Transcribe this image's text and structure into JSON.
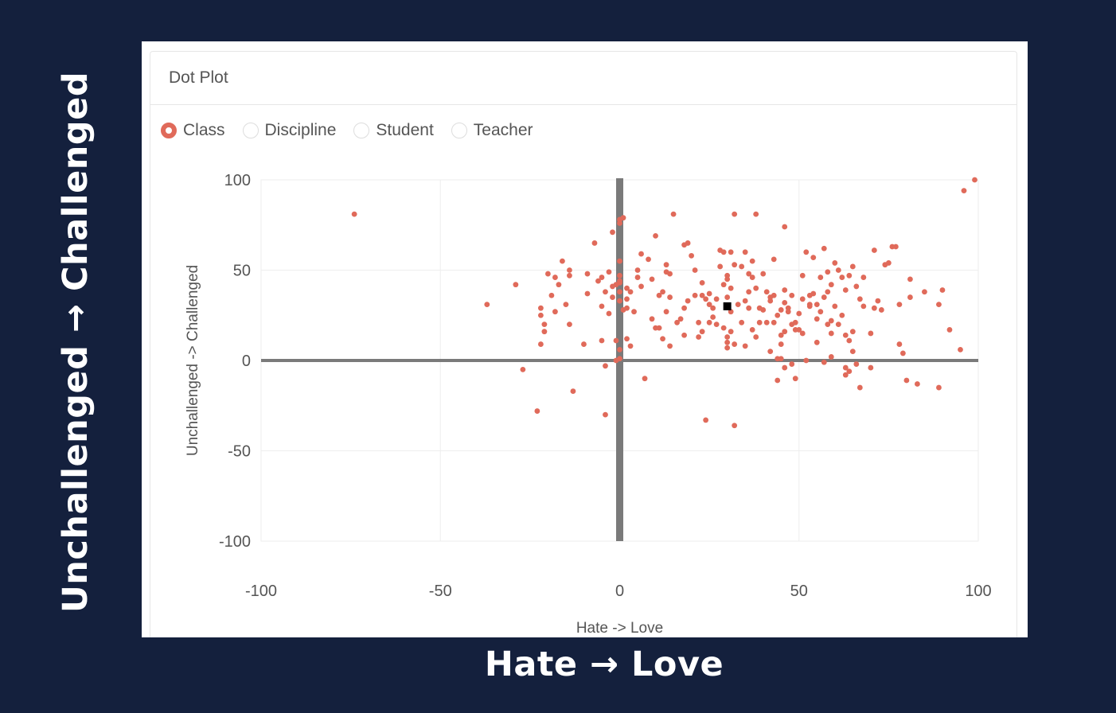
{
  "overlay": {
    "y_caption": "Unchallenged → Challenged",
    "x_caption": "Hate → Love"
  },
  "card": {
    "title": "Dot Plot"
  },
  "radios": [
    {
      "label": "Class",
      "checked": true
    },
    {
      "label": "Discipline",
      "checked": false
    },
    {
      "label": "Student",
      "checked": false
    },
    {
      "label": "Teacher",
      "checked": false
    }
  ],
  "colors": {
    "background": "#14203d",
    "dot": "#e06a5a",
    "axis_line": "#7a7a7a",
    "highlight": "#000000"
  },
  "chart_data": {
    "type": "scatter",
    "title": "",
    "xlabel": "Hate -> Love",
    "ylabel": "Unchallenged -> Challenged",
    "xlim": [
      -100,
      100
    ],
    "ylim": [
      -100,
      100
    ],
    "xticks": [
      -100,
      -50,
      0,
      50,
      100
    ],
    "yticks": [
      100,
      50,
      0,
      -50,
      -100
    ],
    "grid": true,
    "highlight_point": [
      30,
      30
    ],
    "points": [
      [
        -74,
        81
      ],
      [
        -37,
        31
      ],
      [
        -29,
        42
      ],
      [
        -27,
        -5
      ],
      [
        -23,
        -28
      ],
      [
        -22,
        29
      ],
      [
        -22,
        25
      ],
      [
        -22,
        9
      ],
      [
        -21,
        20
      ],
      [
        -21,
        16
      ],
      [
        -20,
        48
      ],
      [
        -19,
        36
      ],
      [
        -18,
        27
      ],
      [
        -18,
        46
      ],
      [
        -17,
        42
      ],
      [
        -16,
        55
      ],
      [
        -15,
        31
      ],
      [
        -14,
        47
      ],
      [
        -14,
        20
      ],
      [
        -14,
        50
      ],
      [
        -13,
        -17
      ],
      [
        -10,
        9
      ],
      [
        -9,
        48
      ],
      [
        -9,
        37
      ],
      [
        -7,
        65
      ],
      [
        -6,
        44
      ],
      [
        -5,
        46
      ],
      [
        -5,
        11
      ],
      [
        -5,
        30
      ],
      [
        -4,
        -30
      ],
      [
        -4,
        -3
      ],
      [
        -4,
        38
      ],
      [
        -3,
        49
      ],
      [
        -3,
        26
      ],
      [
        -2,
        35
      ],
      [
        -2,
        41
      ],
      [
        -2,
        71
      ],
      [
        -1,
        42
      ],
      [
        -1,
        11
      ],
      [
        -1,
        0
      ],
      [
        0,
        55
      ],
      [
        0,
        47
      ],
      [
        0,
        76
      ],
      [
        0,
        44
      ],
      [
        0,
        38
      ],
      [
        0,
        43
      ],
      [
        0,
        33
      ],
      [
        0,
        1
      ],
      [
        0,
        6
      ],
      [
        0,
        78
      ],
      [
        1,
        79
      ],
      [
        1,
        28
      ],
      [
        2,
        34
      ],
      [
        2,
        29
      ],
      [
        2,
        40
      ],
      [
        2,
        12
      ],
      [
        3,
        38
      ],
      [
        3,
        8
      ],
      [
        4,
        27
      ],
      [
        5,
        46
      ],
      [
        5,
        50
      ],
      [
        6,
        41
      ],
      [
        6,
        59
      ],
      [
        7,
        -10
      ],
      [
        8,
        56
      ],
      [
        9,
        45
      ],
      [
        9,
        23
      ],
      [
        10,
        69
      ],
      [
        10,
        18
      ],
      [
        11,
        36
      ],
      [
        11,
        18
      ],
      [
        12,
        38
      ],
      [
        12,
        12
      ],
      [
        13,
        49
      ],
      [
        13,
        27
      ],
      [
        13,
        53
      ],
      [
        14,
        35
      ],
      [
        14,
        48
      ],
      [
        14,
        8
      ],
      [
        15,
        81
      ],
      [
        16,
        21
      ],
      [
        17,
        23
      ],
      [
        18,
        29
      ],
      [
        18,
        14
      ],
      [
        18,
        64
      ],
      [
        19,
        65
      ],
      [
        19,
        33
      ],
      [
        20,
        58
      ],
      [
        21,
        36
      ],
      [
        21,
        50
      ],
      [
        22,
        21
      ],
      [
        22,
        13
      ],
      [
        23,
        16
      ],
      [
        23,
        43
      ],
      [
        23,
        36
      ],
      [
        24,
        -33
      ],
      [
        24,
        34
      ],
      [
        25,
        37
      ],
      [
        25,
        21
      ],
      [
        25,
        31
      ],
      [
        26,
        24
      ],
      [
        26,
        29
      ],
      [
        27,
        34
      ],
      [
        27,
        20
      ],
      [
        28,
        52
      ],
      [
        28,
        61
      ],
      [
        29,
        60
      ],
      [
        29,
        42
      ],
      [
        29,
        18
      ],
      [
        30,
        45
      ],
      [
        30,
        10
      ],
      [
        30,
        35
      ],
      [
        30,
        13
      ],
      [
        30,
        7
      ],
      [
        30,
        47
      ],
      [
        31,
        40
      ],
      [
        31,
        27
      ],
      [
        31,
        16
      ],
      [
        31,
        60
      ],
      [
        32,
        53
      ],
      [
        32,
        9
      ],
      [
        32,
        -36
      ],
      [
        32,
        81
      ],
      [
        33,
        31
      ],
      [
        34,
        52
      ],
      [
        34,
        21
      ],
      [
        35,
        33
      ],
      [
        35,
        60
      ],
      [
        35,
        8
      ],
      [
        36,
        48
      ],
      [
        36,
        29
      ],
      [
        36,
        38
      ],
      [
        37,
        55
      ],
      [
        37,
        46
      ],
      [
        37,
        17
      ],
      [
        38,
        81
      ],
      [
        38,
        13
      ],
      [
        38,
        40
      ],
      [
        39,
        21
      ],
      [
        39,
        29
      ],
      [
        40,
        28
      ],
      [
        40,
        48
      ],
      [
        41,
        21
      ],
      [
        41,
        38
      ],
      [
        42,
        5
      ],
      [
        42,
        33
      ],
      [
        42,
        35
      ],
      [
        43,
        56
      ],
      [
        43,
        36
      ],
      [
        43,
        21
      ],
      [
        44,
        25
      ],
      [
        44,
        1
      ],
      [
        44,
        -11
      ],
      [
        45,
        14
      ],
      [
        45,
        1
      ],
      [
        45,
        28
      ],
      [
        45,
        9
      ],
      [
        46,
        16
      ],
      [
        46,
        74
      ],
      [
        46,
        39
      ],
      [
        46,
        32
      ],
      [
        46,
        -4
      ],
      [
        47,
        29
      ],
      [
        47,
        27
      ],
      [
        48,
        20
      ],
      [
        48,
        36
      ],
      [
        48,
        -2
      ],
      [
        49,
        21
      ],
      [
        49,
        17
      ],
      [
        49,
        -10
      ],
      [
        50,
        17
      ],
      [
        50,
        26
      ],
      [
        51,
        47
      ],
      [
        51,
        15
      ],
      [
        51,
        34
      ],
      [
        52,
        60
      ],
      [
        52,
        0
      ],
      [
        53,
        30
      ],
      [
        53,
        31
      ],
      [
        53,
        36
      ],
      [
        54,
        37
      ],
      [
        54,
        57
      ],
      [
        55,
        31
      ],
      [
        55,
        10
      ],
      [
        55,
        23
      ],
      [
        56,
        46
      ],
      [
        56,
        27
      ],
      [
        57,
        -1
      ],
      [
        57,
        62
      ],
      [
        57,
        35
      ],
      [
        58,
        20
      ],
      [
        58,
        49
      ],
      [
        58,
        38
      ],
      [
        59,
        22
      ],
      [
        59,
        42
      ],
      [
        59,
        2
      ],
      [
        59,
        15
      ],
      [
        60,
        54
      ],
      [
        60,
        30
      ],
      [
        61,
        50
      ],
      [
        61,
        20
      ],
      [
        62,
        46
      ],
      [
        62,
        25
      ],
      [
        63,
        14
      ],
      [
        63,
        -8
      ],
      [
        63,
        -4
      ],
      [
        63,
        39
      ],
      [
        64,
        11
      ],
      [
        64,
        -6
      ],
      [
        64,
        47
      ],
      [
        65,
        52
      ],
      [
        65,
        5
      ],
      [
        65,
        16
      ],
      [
        66,
        41
      ],
      [
        66,
        -2
      ],
      [
        67,
        -15
      ],
      [
        67,
        34
      ],
      [
        68,
        46
      ],
      [
        68,
        30
      ],
      [
        70,
        -4
      ],
      [
        70,
        15
      ],
      [
        71,
        29
      ],
      [
        71,
        61
      ],
      [
        72,
        33
      ],
      [
        73,
        28
      ],
      [
        74,
        53
      ],
      [
        75,
        54
      ],
      [
        76,
        63
      ],
      [
        77,
        63
      ],
      [
        78,
        31
      ],
      [
        78,
        9
      ],
      [
        79,
        4
      ],
      [
        80,
        -11
      ],
      [
        81,
        45
      ],
      [
        81,
        35
      ],
      [
        83,
        -13
      ],
      [
        85,
        38
      ],
      [
        89,
        -15
      ],
      [
        89,
        31
      ],
      [
        90,
        39
      ],
      [
        92,
        17
      ],
      [
        95,
        6
      ],
      [
        96,
        94
      ],
      [
        99,
        100
      ]
    ]
  }
}
